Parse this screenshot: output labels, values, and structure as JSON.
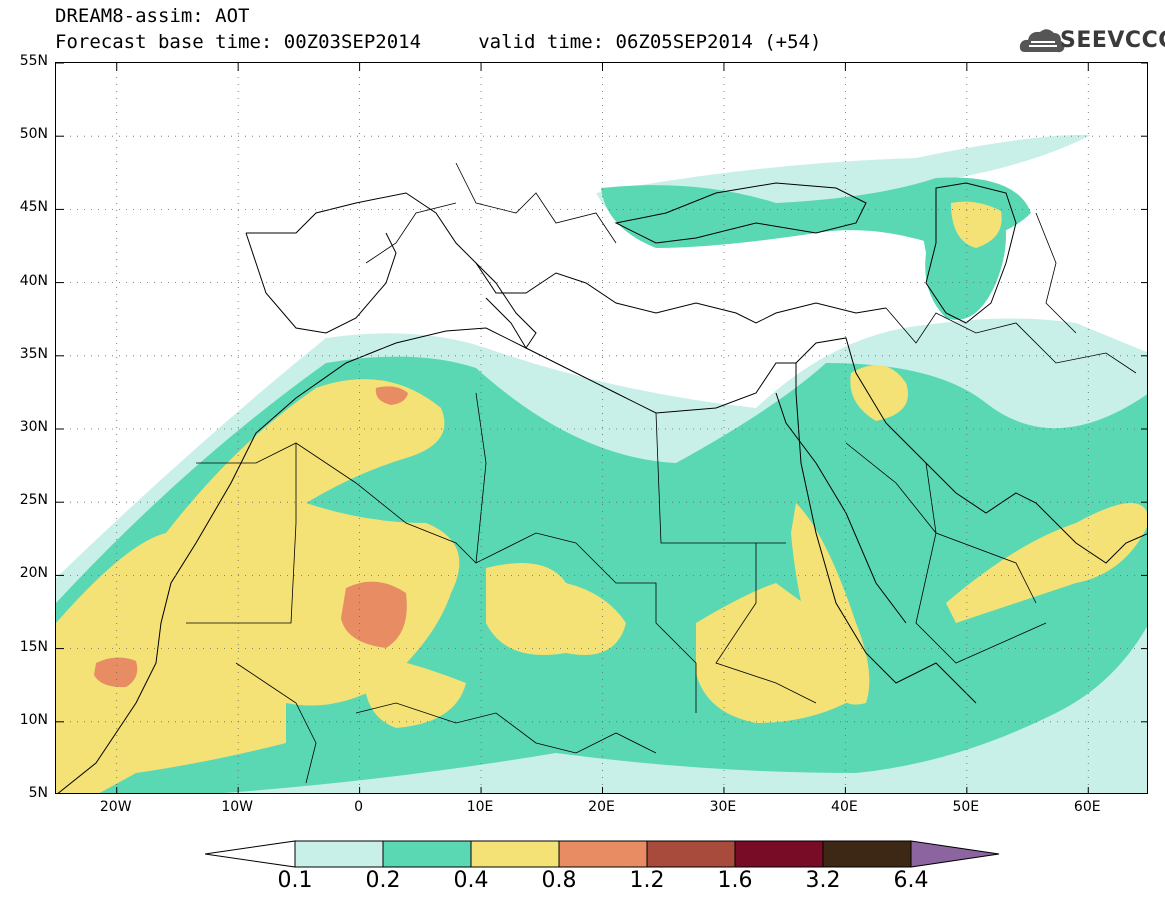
{
  "header": {
    "title_line1": "DREAM8-assim: AOT",
    "title_line2": "Forecast base time: 00Z03SEP2014     valid time: 06Z05SEP2014 (+54)",
    "logo_text": "SEEVCCC",
    "logo_icon": "cloud-logo-icon"
  },
  "map": {
    "lon_range": [
      -25,
      65
    ],
    "lat_range": [
      5,
      55
    ],
    "lat_ticks": [
      "55N",
      "50N",
      "45N",
      "40N",
      "35N",
      "30N",
      "25N",
      "20N",
      "15N",
      "10N",
      "5N"
    ],
    "lat_values": [
      55,
      50,
      45,
      40,
      35,
      30,
      25,
      20,
      15,
      10,
      5
    ],
    "lon_ticks": [
      "20W",
      "10W",
      "0",
      "10E",
      "20E",
      "30E",
      "40E",
      "50E",
      "60E"
    ],
    "lon_values": [
      -20,
      -10,
      0,
      10,
      20,
      30,
      40,
      50,
      60
    ],
    "gridlines": "dotted",
    "field": "AOT"
  },
  "colorbar": {
    "labels": [
      "0.1",
      "0.2",
      "0.4",
      "0.8",
      "1.2",
      "1.6",
      "3.2",
      "6.4"
    ],
    "colors": [
      "#c8f0e8",
      "#5ad8b4",
      "#f4e276",
      "#e88c64",
      "#a84a3c",
      "#780c26",
      "#3c2814",
      "#8c64a0"
    ],
    "under_color": "#ffffff",
    "over_color": "#8c64a0"
  }
}
